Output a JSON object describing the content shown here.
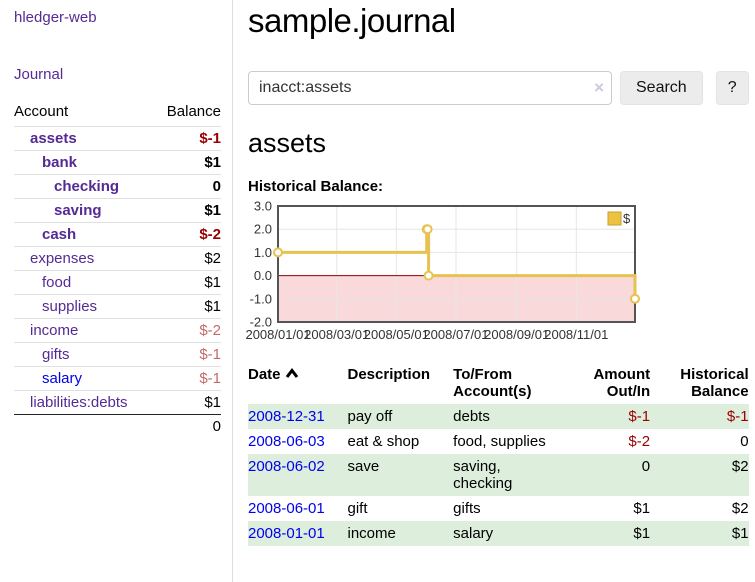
{
  "colors": {
    "link_purple": "#552a94",
    "link_blue": "#0000ee",
    "negative_strong": "#990000",
    "negative_soft": "#c46a6a",
    "row_green": "#ddeedd",
    "series_gold": "#e8c251"
  },
  "sidebar": {
    "brand": "hledger-web",
    "nav": [
      {
        "label": "Journal"
      }
    ],
    "accounts_table": {
      "headers": [
        "Account",
        "Balance"
      ],
      "rows": [
        {
          "account": "assets",
          "balance": "$-1",
          "indent": 0,
          "bold": true,
          "balance_class": "neg",
          "link_class": "purple"
        },
        {
          "account": "bank",
          "balance": "$1",
          "indent": 1,
          "bold": true,
          "balance_class": "",
          "link_class": "purple"
        },
        {
          "account": "checking",
          "balance": "0",
          "indent": 2,
          "bold": true,
          "balance_class": "",
          "link_class": "purple"
        },
        {
          "account": "saving",
          "balance": "$1",
          "indent": 2,
          "bold": true,
          "balance_class": "",
          "link_class": "purple"
        },
        {
          "account": "cash",
          "balance": "$-2",
          "indent": 1,
          "bold": true,
          "balance_class": "neg",
          "link_class": "purple"
        },
        {
          "account": "expenses",
          "balance": "$2",
          "indent": 0,
          "bold": false,
          "balance_class": "",
          "link_class": "purple"
        },
        {
          "account": "food",
          "balance": "$1",
          "indent": 1,
          "bold": false,
          "balance_class": "",
          "link_class": "purple"
        },
        {
          "account": "supplies",
          "balance": "$1",
          "indent": 1,
          "bold": false,
          "balance_class": "",
          "link_class": "purple"
        },
        {
          "account": "income",
          "balance": "$-2",
          "indent": 0,
          "bold": false,
          "balance_class": "neg-soft",
          "link_class": "purple"
        },
        {
          "account": "gifts",
          "balance": "$-1",
          "indent": 1,
          "bold": false,
          "balance_class": "neg-soft",
          "link_class": "purple"
        },
        {
          "account": "salary",
          "balance": "$-1",
          "indent": 1,
          "bold": false,
          "balance_class": "neg-soft",
          "link_class": "blue-link"
        },
        {
          "account": "liabilities:debts",
          "balance": "$1",
          "indent": 0,
          "bold": false,
          "balance_class": "",
          "link_class": "purple"
        }
      ],
      "total": "0"
    }
  },
  "header": {
    "title": "sample.journal"
  },
  "search": {
    "value": "inacct:assets",
    "clear_icon": "×",
    "search_label": "Search",
    "help_label": "?"
  },
  "account_page": {
    "title": "assets",
    "chart_label": "Historical Balance:"
  },
  "chart_data": {
    "type": "line",
    "step": true,
    "title": "Historical Balance",
    "series": [
      {
        "name": "$",
        "color": "#e8c251",
        "points": [
          {
            "date": "2008-01-01",
            "value": 1
          },
          {
            "date": "2008-06-01",
            "value": 2
          },
          {
            "date": "2008-06-02",
            "value": 2
          },
          {
            "date": "2008-06-03",
            "value": 0
          },
          {
            "date": "2008-12-31",
            "value": -1
          }
        ]
      }
    ],
    "xlim": [
      "2008-01-01",
      "2008-12-31"
    ],
    "ylim": [
      -2,
      3
    ],
    "yticks": [
      "3.0",
      "2.0",
      "1.0",
      "0.0",
      "-1.0",
      "-2.0"
    ],
    "xticks": [
      "2008/01/01",
      "2008/03/01",
      "2008/05/01",
      "2008/07/01",
      "2008/09/01",
      "2008/11/01"
    ],
    "legend": {
      "label": "$",
      "position": "top-right",
      "swatch_color": "#edc240",
      "swatch_border": "#c7a22d"
    },
    "grid": true,
    "grid_color": "#e6e6e6",
    "zero_line_color": "#8b0000",
    "negative_region_fill": "#f9d9da",
    "border_color": "#545454",
    "marker": "open-circle"
  },
  "transactions": {
    "headers": [
      "Date",
      "Description",
      "To/From Account(s)",
      "Amount Out/In",
      "Historical Balance"
    ],
    "rows": [
      {
        "date": "2008-12-31",
        "description": "pay off",
        "accounts": "debts",
        "amount": "$-1",
        "amount_class": "neg",
        "balance": "$-1",
        "balance_class": "neg",
        "green": true
      },
      {
        "date": "2008-06-03",
        "description": "eat & shop",
        "accounts": "food, supplies",
        "amount": "$-2",
        "amount_class": "neg",
        "balance": "0",
        "balance_class": "",
        "green": false
      },
      {
        "date": "2008-06-02",
        "description": "save",
        "accounts": "saving, checking",
        "amount": "0",
        "amount_class": "",
        "balance": "$2",
        "balance_class": "",
        "green": true
      },
      {
        "date": "2008-06-01",
        "description": "gift",
        "accounts": "gifts",
        "amount": "$1",
        "amount_class": "",
        "balance": "$2",
        "balance_class": "",
        "green": false
      },
      {
        "date": "2008-01-01",
        "description": "income",
        "accounts": "salary",
        "amount": "$1",
        "amount_class": "",
        "balance": "$1",
        "balance_class": "",
        "green": true
      }
    ]
  }
}
